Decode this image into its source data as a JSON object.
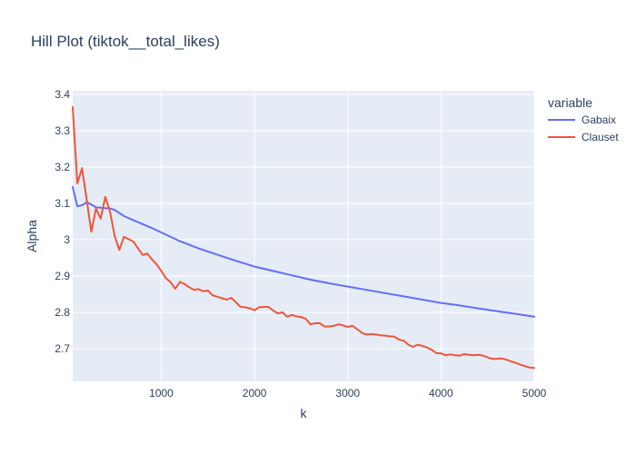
{
  "chart_data": {
    "type": "line",
    "title": "Hill Plot (tiktok__total_likes)",
    "xlabel": "k",
    "ylabel": "Alpha",
    "xlim": [
      50,
      5000
    ],
    "ylim": [
      2.61,
      3.41
    ],
    "xticks": [
      1000,
      2000,
      3000,
      4000,
      5000
    ],
    "yticks": [
      2.7,
      2.8,
      2.9,
      3.0,
      3.1,
      3.2,
      3.3,
      3.4
    ],
    "ytick_labels": [
      "2.7",
      "2.8",
      "2.9",
      "3",
      "3.1",
      "3.2",
      "3.3",
      "3.4"
    ],
    "grid": true,
    "legend": {
      "title": "variable",
      "placement": "top-right"
    },
    "series": [
      {
        "name": "Gabaix",
        "color": "#636efa",
        "x": [
          50,
          100,
          150,
          200,
          250,
          300,
          350,
          400,
          450,
          500,
          600,
          700,
          800,
          900,
          1000,
          1200,
          1400,
          1600,
          1800,
          2000,
          2200,
          2400,
          2600,
          2800,
          3000,
          3200,
          3400,
          3600,
          3800,
          4000,
          4200,
          4400,
          4600,
          4800,
          5000
        ],
        "y": [
          3.145,
          3.092,
          3.095,
          3.103,
          3.097,
          3.089,
          3.088,
          3.087,
          3.086,
          3.082,
          3.065,
          3.054,
          3.043,
          3.032,
          3.02,
          2.996,
          2.976,
          2.959,
          2.942,
          2.926,
          2.914,
          2.902,
          2.89,
          2.88,
          2.871,
          2.862,
          2.853,
          2.844,
          2.835,
          2.826,
          2.819,
          2.811,
          2.803,
          2.796,
          2.788
        ]
      },
      {
        "name": "Clauset",
        "color": "#ef553b",
        "x": [
          50,
          100,
          150,
          200,
          250,
          300,
          350,
          400,
          450,
          500,
          550,
          600,
          700,
          800,
          850,
          900,
          950,
          1000,
          1050,
          1100,
          1150,
          1200,
          1250,
          1300,
          1350,
          1400,
          1450,
          1500,
          1550,
          1600,
          1650,
          1700,
          1750,
          1800,
          1850,
          1900,
          1950,
          2000,
          2050,
          2100,
          2150,
          2200,
          2250,
          2300,
          2350,
          2400,
          2450,
          2500,
          2550,
          2600,
          2650,
          2700,
          2750,
          2800,
          2850,
          2900,
          2950,
          3000,
          3050,
          3100,
          3150,
          3200,
          3250,
          3300,
          3350,
          3400,
          3450,
          3500,
          3550,
          3600,
          3650,
          3700,
          3750,
          3800,
          3850,
          3900,
          3950,
          4000,
          4050,
          4100,
          4150,
          4200,
          4250,
          4300,
          4350,
          4400,
          4450,
          4500,
          4550,
          4600,
          4650,
          4700,
          4750,
          4800,
          4850,
          4900,
          4950,
          5000
        ],
        "y": [
          3.365,
          3.155,
          3.197,
          3.11,
          3.022,
          3.086,
          3.058,
          3.118,
          3.077,
          3.01,
          2.972,
          3.008,
          2.995,
          2.958,
          2.962,
          2.946,
          2.932,
          2.914,
          2.894,
          2.883,
          2.865,
          2.884,
          2.878,
          2.869,
          2.862,
          2.864,
          2.858,
          2.86,
          2.847,
          2.843,
          2.839,
          2.835,
          2.84,
          2.828,
          2.815,
          2.814,
          2.811,
          2.806,
          2.814,
          2.815,
          2.815,
          2.805,
          2.797,
          2.8,
          2.788,
          2.793,
          2.789,
          2.787,
          2.782,
          2.767,
          2.77,
          2.77,
          2.761,
          2.761,
          2.763,
          2.767,
          2.764,
          2.76,
          2.763,
          2.754,
          2.744,
          2.739,
          2.74,
          2.739,
          2.737,
          2.736,
          2.734,
          2.733,
          2.725,
          2.722,
          2.711,
          2.705,
          2.711,
          2.708,
          2.703,
          2.697,
          2.688,
          2.687,
          2.682,
          2.684,
          2.682,
          2.681,
          2.685,
          2.683,
          2.682,
          2.683,
          2.681,
          2.676,
          2.672,
          2.672,
          2.673,
          2.67,
          2.665,
          2.661,
          2.656,
          2.652,
          2.648,
          2.647
        ]
      }
    ]
  }
}
